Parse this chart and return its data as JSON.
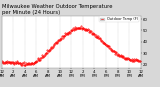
{
  "title": "Milwaukee Weather Outdoor Temperature per Minute (24 Hours)",
  "ylabel_right_ticks": [
    20,
    30,
    40,
    50,
    60
  ],
  "ylim": [
    17,
    63
  ],
  "xlim": [
    0,
    1440
  ],
  "bg_color": "#d8d8d8",
  "plot_bg_color": "#ffffff",
  "line_color": "#ff0000",
  "legend_label": "Outdoor Temp (F)",
  "legend_color": "#ff0000",
  "grid_color": "#888888",
  "title_fontsize": 3.8,
  "tick_fontsize": 2.8,
  "figwidth": 1.6,
  "figheight": 0.87,
  "dpi": 100
}
